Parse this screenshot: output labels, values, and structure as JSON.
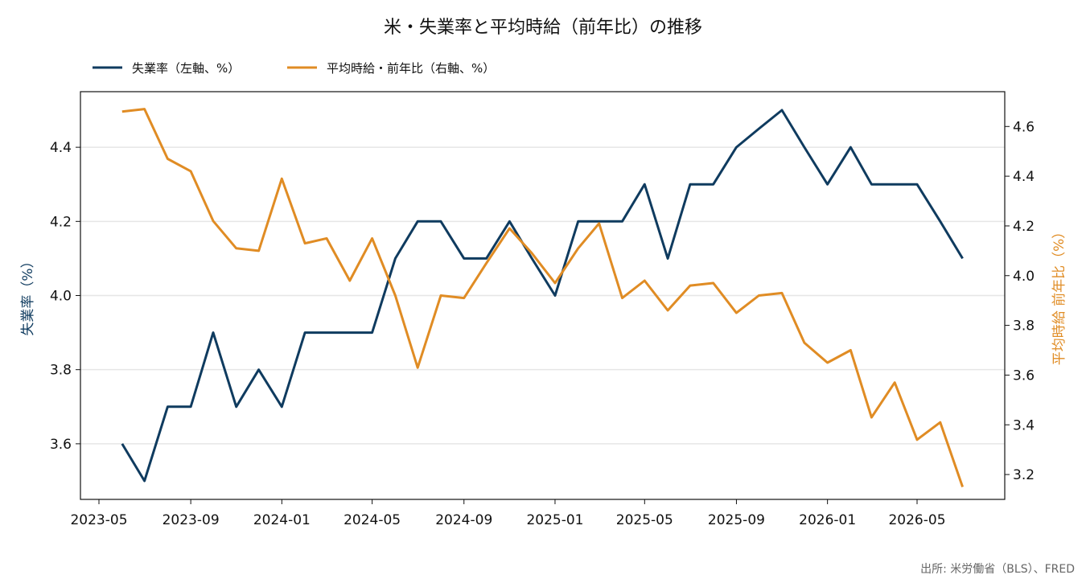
{
  "chart_data": {
    "type": "line",
    "title": "米・失業率と平均時給（前年比）の推移",
    "source": "出所: 米労働省（BLS）、FRED",
    "x": [
      "2023-06",
      "2023-07",
      "2023-08",
      "2023-09",
      "2023-10",
      "2023-11",
      "2023-12",
      "2024-01",
      "2024-02",
      "2024-03",
      "2024-04",
      "2024-05",
      "2024-06",
      "2024-07",
      "2024-08",
      "2024-09",
      "2024-10",
      "2024-11",
      "2024-12",
      "2025-01",
      "2025-02",
      "2025-03",
      "2025-04",
      "2025-05",
      "2025-06",
      "2025-07",
      "2025-08",
      "2025-09",
      "2025-10",
      "2025-11",
      "2025-12",
      "2026-01",
      "2026-02",
      "2026-03",
      "2026-04",
      "2026-05",
      "2026-06",
      "2026-07"
    ],
    "x_ticks": [
      "2023-05",
      "2023-09",
      "2024-01",
      "2024-05",
      "2024-09",
      "2025-01",
      "2025-05",
      "2025-09",
      "2026-01",
      "2026-05"
    ],
    "ylabel_left": "失業率（%）",
    "ylabel_right": "平均時給 前年比（%）",
    "ylim_left": [
      3.45,
      4.55
    ],
    "ylim_right": [
      3.1,
      4.74
    ],
    "yticks_left": [
      "3.6",
      "3.8",
      "4.0",
      "4.2",
      "4.4"
    ],
    "yticks_right": [
      "3.2",
      "3.4",
      "3.6",
      "3.8",
      "4.0",
      "4.2",
      "4.4",
      "4.6"
    ],
    "grid": "horizontal (left axis)",
    "legend_position": "top-left",
    "series": [
      {
        "name": "失業率（左軸、%）",
        "axis": "left",
        "color": "#0f3b5f",
        "values": [
          3.6,
          3.5,
          3.7,
          3.7,
          3.9,
          3.7,
          3.8,
          3.7,
          3.9,
          3.9,
          3.9,
          3.9,
          4.1,
          4.2,
          4.2,
          4.1,
          4.1,
          4.2,
          4.1,
          4.0,
          4.2,
          4.2,
          4.2,
          4.3,
          4.1,
          4.3,
          4.3,
          4.4,
          4.45,
          4.5,
          4.4,
          4.3,
          4.4,
          4.3,
          4.3,
          4.3,
          4.2,
          4.1
        ]
      },
      {
        "name": "平均時給・前年比（右軸、%）",
        "axis": "right",
        "color": "#e08c24",
        "values": [
          4.66,
          4.67,
          4.47,
          4.42,
          4.22,
          4.11,
          4.1,
          4.39,
          4.13,
          4.15,
          3.98,
          4.15,
          3.92,
          3.63,
          3.92,
          3.91,
          4.05,
          4.19,
          4.09,
          3.97,
          4.11,
          4.21,
          3.91,
          3.98,
          3.86,
          3.96,
          3.97,
          3.85,
          3.92,
          3.93,
          3.73,
          3.65,
          3.7,
          3.43,
          3.57,
          3.34,
          3.41,
          3.15
        ]
      }
    ]
  }
}
